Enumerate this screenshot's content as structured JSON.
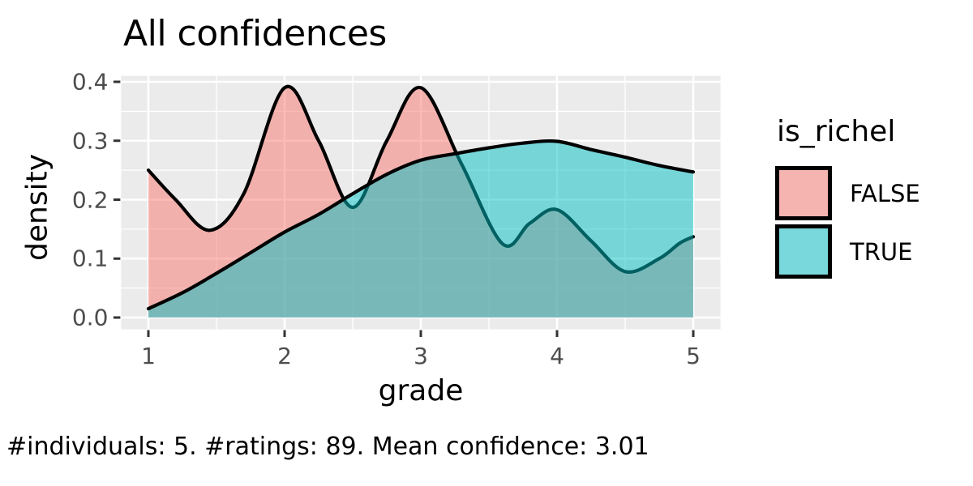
{
  "title": "All confidences",
  "caption": "#individuals: 5. #ratings: 89. Mean confidence: 3.01",
  "axes": {
    "x_label": "grade",
    "y_label": "density"
  },
  "legend": {
    "title": "is_richel",
    "entries": [
      {
        "label": "FALSE",
        "color": "#F8766D"
      },
      {
        "label": "TRUE",
        "color": "#00BFC4"
      }
    ]
  },
  "theme": {
    "panel_bg": "#EBEBEB",
    "grid_color": "#FFFFFF",
    "tick_mark_color": "#333333",
    "tick_label_color": "#4D4D4D",
    "outline_color": "#000000",
    "fill_alpha": 0.5
  },
  "chart_data": {
    "type": "area",
    "subtype": "overlaid-density",
    "title": "All confidences",
    "xlabel": "grade",
    "ylabel": "density",
    "xlim": [
      0.8,
      5.2
    ],
    "ylim": [
      -0.02,
      0.41
    ],
    "grid": true,
    "legend_position": "right",
    "legend_title": "is_richel",
    "x_ticks": [
      1,
      2,
      3,
      4,
      5
    ],
    "x_tick_labels": [
      "1",
      "2",
      "3",
      "4",
      "5"
    ],
    "y_ticks": [
      0.0,
      0.1,
      0.2,
      0.3,
      0.4
    ],
    "y_tick_labels": [
      "0.0",
      "0.1",
      "0.2",
      "0.3",
      "0.4"
    ],
    "x_minor_ticks": [
      1.5,
      2.5,
      3.5,
      4.5
    ],
    "y_minor_ticks": [
      0.05,
      0.15,
      0.25,
      0.35
    ],
    "series": [
      {
        "name": "FALSE",
        "fill": "#F8766D",
        "outline": "#000000",
        "points": [
          [
            1.0,
            0.25
          ],
          [
            1.2,
            0.2
          ],
          [
            1.45,
            0.148
          ],
          [
            1.7,
            0.21
          ],
          [
            2.0,
            0.39
          ],
          [
            2.25,
            0.3
          ],
          [
            2.5,
            0.187
          ],
          [
            2.75,
            0.3
          ],
          [
            3.0,
            0.39
          ],
          [
            3.3,
            0.26
          ],
          [
            3.6,
            0.125
          ],
          [
            3.8,
            0.16
          ],
          [
            4.0,
            0.183
          ],
          [
            4.25,
            0.13
          ],
          [
            4.5,
            0.078
          ],
          [
            4.75,
            0.1
          ],
          [
            4.9,
            0.126
          ],
          [
            5.0,
            0.137
          ]
        ]
      },
      {
        "name": "TRUE",
        "fill": "#00BFC4",
        "outline": "#000000",
        "points": [
          [
            1.0,
            0.015
          ],
          [
            1.25,
            0.042
          ],
          [
            1.5,
            0.075
          ],
          [
            1.75,
            0.11
          ],
          [
            2.0,
            0.145
          ],
          [
            2.25,
            0.175
          ],
          [
            2.5,
            0.21
          ],
          [
            2.75,
            0.243
          ],
          [
            3.0,
            0.267
          ],
          [
            3.25,
            0.278
          ],
          [
            3.5,
            0.288
          ],
          [
            3.75,
            0.296
          ],
          [
            4.0,
            0.299
          ],
          [
            4.25,
            0.285
          ],
          [
            4.5,
            0.272
          ],
          [
            4.75,
            0.258
          ],
          [
            5.0,
            0.247
          ]
        ]
      }
    ]
  }
}
